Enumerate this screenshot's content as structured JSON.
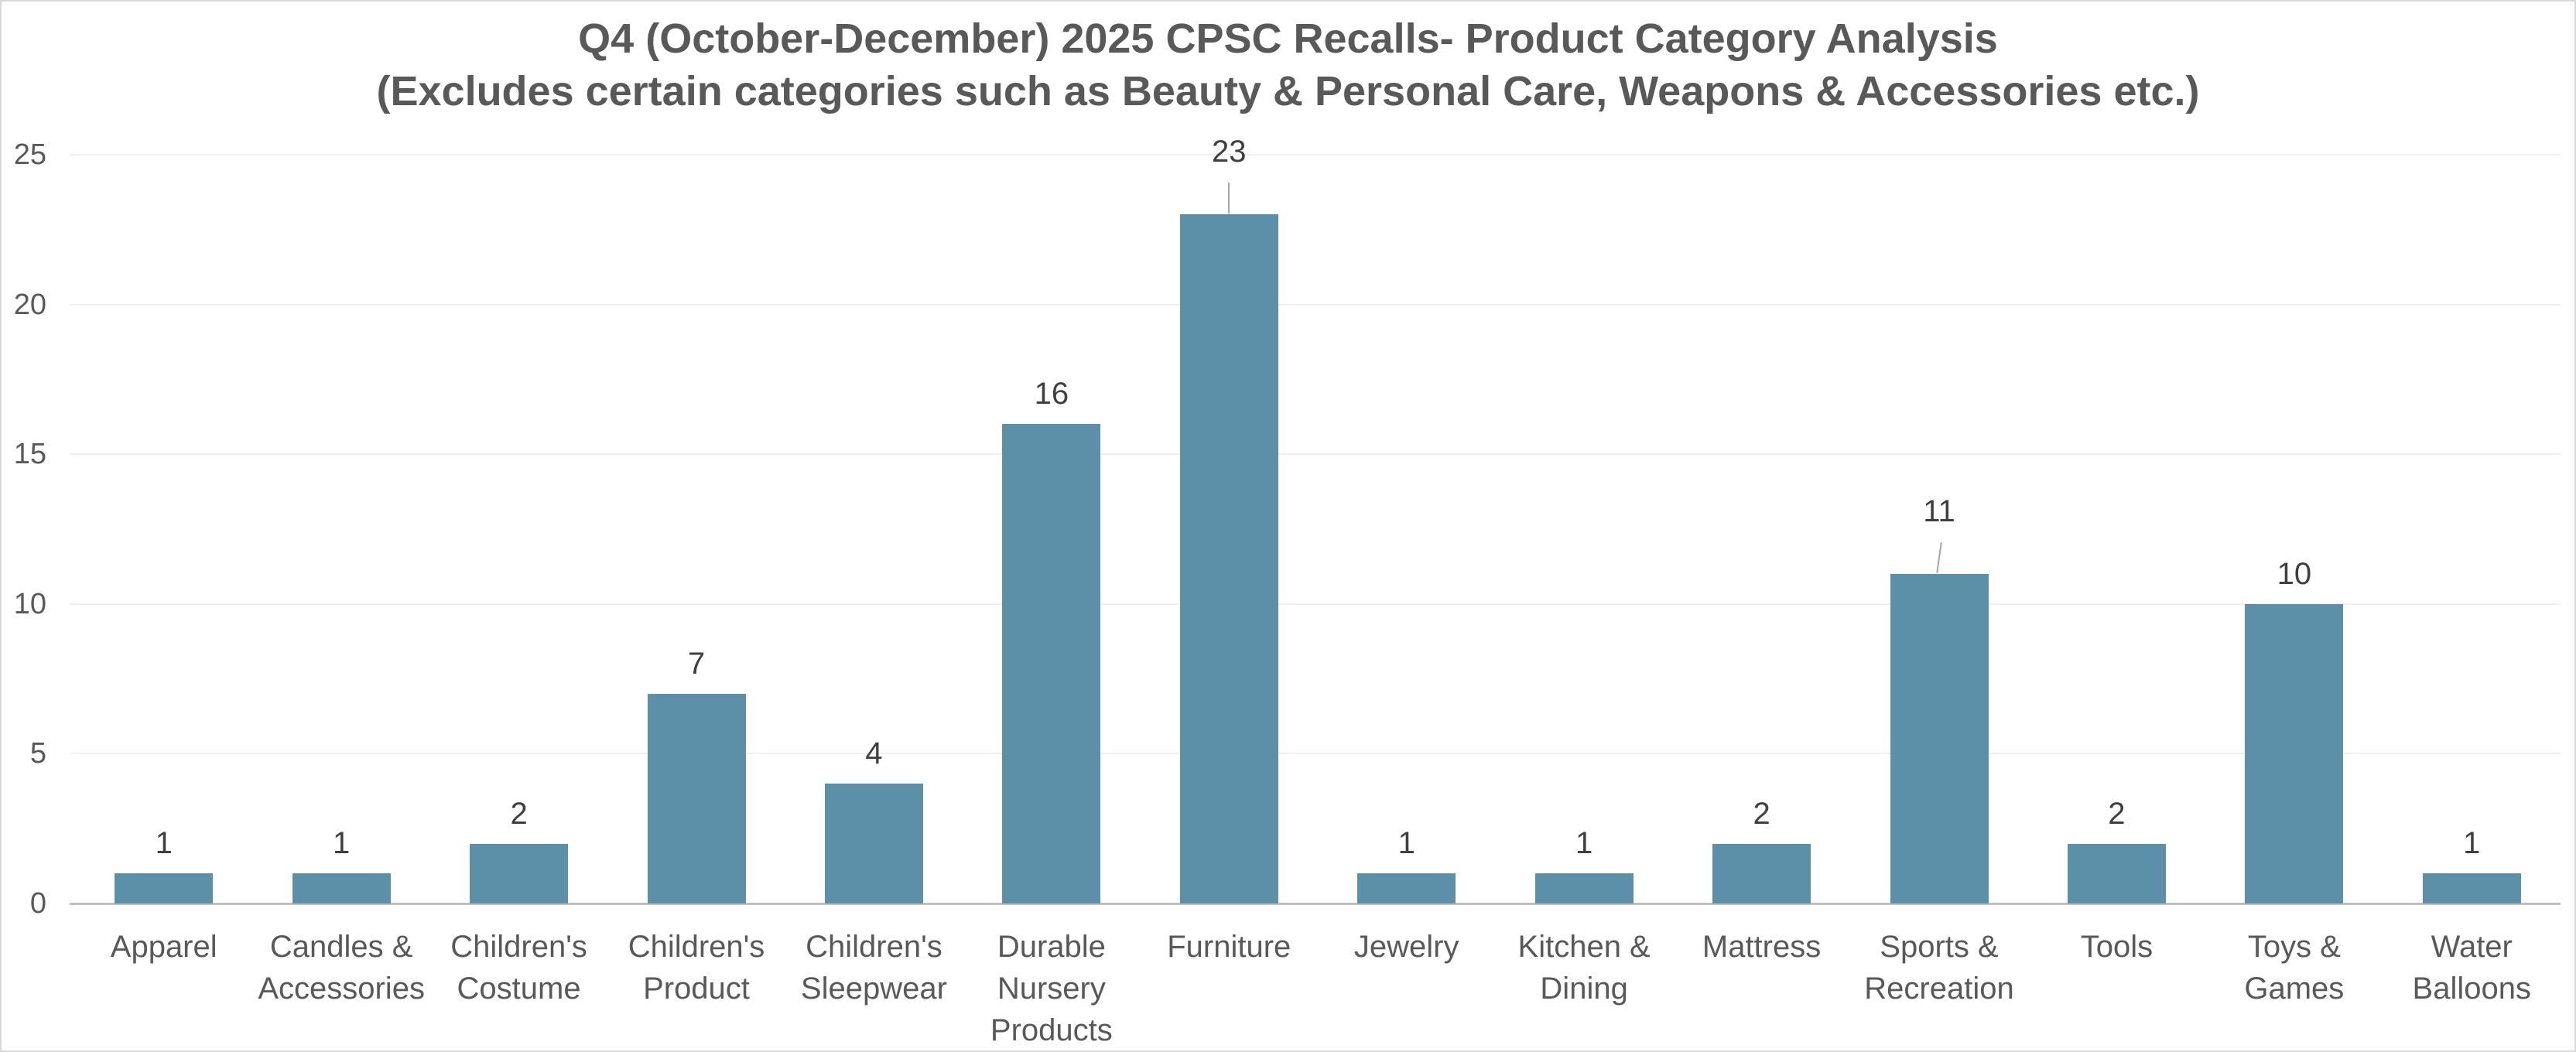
{
  "chart_data": {
    "type": "bar",
    "title": "Q4 (October-December) 2025 CPSC Recalls- Product Category Analysis",
    "subtitle": "(Excludes certain categories such as Beauty & Personal Care, Weapons & Accessories etc.)",
    "categories": [
      "Apparel",
      "Candles & Accessories",
      "Children's Costume",
      "Children's Product",
      "Children's Sleepwear",
      "Durable Nursery Products",
      "Furniture",
      "Jewelry",
      "Kitchen & Dining",
      "Mattress",
      "Sports & Recreation",
      "Tools",
      "Toys & Games",
      "Water Balloons"
    ],
    "category_label_lines": [
      [
        "Apparel"
      ],
      [
        "Candles &",
        "Accessories"
      ],
      [
        "Children's",
        "Costume"
      ],
      [
        "Children's",
        "Product"
      ],
      [
        "Children's",
        "Sleepwear"
      ],
      [
        "Durable",
        "Nursery",
        "Products"
      ],
      [
        "Furniture"
      ],
      [
        "Jewelry"
      ],
      [
        "Kitchen &",
        "Dining"
      ],
      [
        "Mattress"
      ],
      [
        "Sports &",
        "Recreation"
      ],
      [
        "Tools"
      ],
      [
        "Toys &",
        "Games"
      ],
      [
        "Water",
        "Balloons"
      ]
    ],
    "values": [
      1,
      1,
      2,
      7,
      4,
      16,
      23,
      1,
      1,
      2,
      11,
      2,
      10,
      1
    ],
    "data_labels": [
      "1",
      "1",
      "2",
      "7",
      "4",
      "16",
      "23",
      "1",
      "1",
      "2",
      "11",
      "2",
      "10",
      "1"
    ],
    "leader_label_indices": [
      6,
      10
    ],
    "yticks": [
      0,
      5,
      10,
      15,
      20,
      25
    ],
    "ylim": [
      0,
      25
    ],
    "xlabel": "",
    "ylabel": "",
    "grid": true,
    "legend": false,
    "colors": {
      "bar": "#5B90A8",
      "title_text": "#595959",
      "axis_text": "#595959",
      "data_label_text": "#3F3F3F",
      "gridline": "#EFEFEF",
      "axis_line": "#BFBFBF",
      "leader_line": "#A6A6A6",
      "chart_border": "#D9D9D9",
      "background": "#FFFFFF"
    }
  }
}
